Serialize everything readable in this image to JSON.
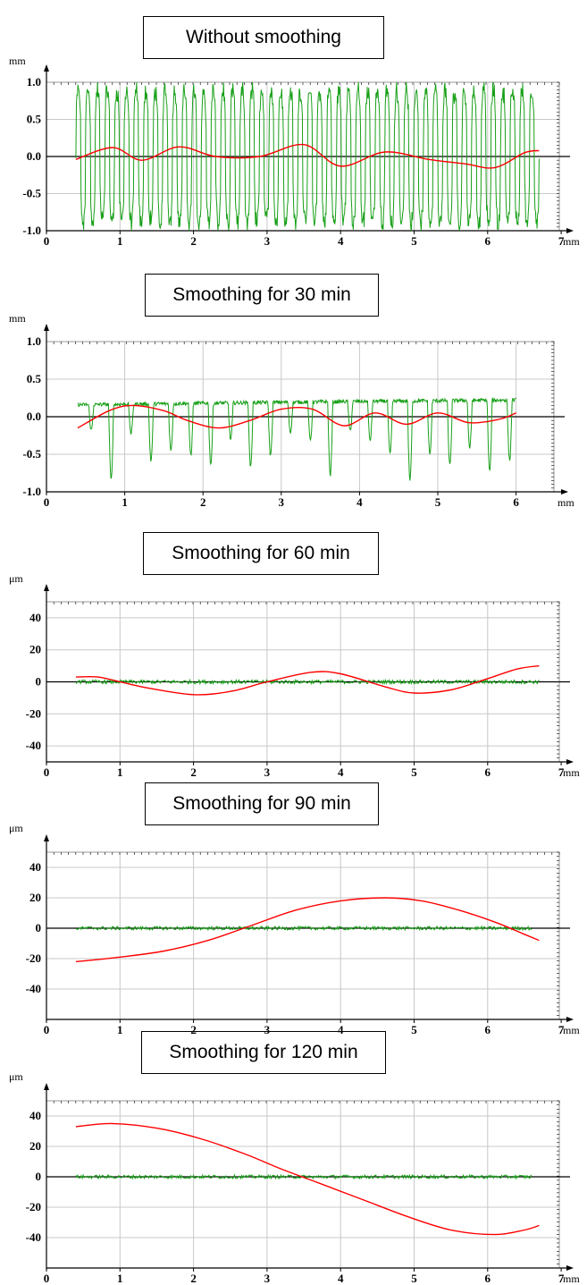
{
  "chart_data": [
    {
      "type": "line",
      "title": "Without smoothing",
      "ylabel": "mm",
      "xlabel": "mm",
      "xlim": [
        0,
        7
      ],
      "ylim": [
        -1.0,
        1.0
      ],
      "x_ticks": [
        "0",
        "1",
        "2",
        "3",
        "4",
        "5",
        "6",
        "7"
      ],
      "y_ticks": [
        "1.0",
        "0.5",
        "0.0",
        "-0.5",
        "-1.0"
      ],
      "grid": true,
      "series": [
        {
          "color": "#18a018",
          "style": "noise",
          "x": [
            0.4,
            6.7
          ],
          "amplitude": [
            -1.0,
            1.0
          ],
          "oscillations": 48
        },
        {
          "color": "#ff0000",
          "x": [
            0.4,
            0.9,
            1.3,
            1.8,
            2.3,
            2.9,
            3.5,
            4.0,
            4.6,
            5.2,
            5.7,
            6.1,
            6.5,
            6.7
          ],
          "y": [
            -0.04,
            0.12,
            -0.05,
            0.13,
            0.0,
            0.0,
            0.16,
            -0.13,
            0.06,
            -0.04,
            -0.1,
            -0.15,
            0.05,
            0.08
          ]
        }
      ]
    },
    {
      "type": "line",
      "title": "Smoothing for 30 min",
      "ylabel": "mm",
      "xlabel": "mm",
      "xlim": [
        0,
        6.2
      ],
      "ylim": [
        -1.0,
        1.0
      ],
      "x_ticks": [
        "0",
        "1",
        "2",
        "3",
        "4",
        "5",
        "6"
      ],
      "y_ticks": [
        "1.0",
        "0.5",
        "0.0",
        "-0.5",
        "-1.0"
      ],
      "grid": true,
      "series": [
        {
          "color": "#18a018",
          "style": "dips",
          "x": [
            0.4,
            6.0
          ],
          "baseline": 0.2,
          "dip_min": -0.9,
          "dips": 22
        },
        {
          "color": "#ff0000",
          "x": [
            0.4,
            0.8,
            1.1,
            1.5,
            1.8,
            2.2,
            2.6,
            3.0,
            3.4,
            3.8,
            4.2,
            4.6,
            5.0,
            5.4,
            5.8,
            6.0
          ],
          "y": [
            -0.15,
            0.08,
            0.15,
            0.08,
            -0.05,
            -0.15,
            -0.05,
            0.1,
            0.1,
            -0.12,
            0.05,
            -0.1,
            0.05,
            -0.08,
            -0.03,
            0.05
          ]
        }
      ]
    },
    {
      "type": "line",
      "title": "Smoothing for 60 min",
      "ylabel": "μm",
      "xlabel": "mm",
      "xlim": [
        0,
        7
      ],
      "ylim": [
        -50,
        50
      ],
      "x_ticks": [
        "0",
        "1",
        "2",
        "3",
        "4",
        "5",
        "6",
        "7"
      ],
      "y_ticks": [
        "40",
        "20",
        "0",
        "-20",
        "-40"
      ],
      "grid": true,
      "series": [
        {
          "color": "#18a018",
          "style": "flat",
          "x": [
            0.4,
            6.7
          ],
          "y": 0,
          "noise": 1.2
        },
        {
          "color": "#ff0000",
          "x": [
            0.4,
            0.7,
            1.0,
            1.4,
            2.0,
            2.5,
            3.0,
            3.6,
            4.0,
            4.6,
            5.0,
            5.5,
            6.0,
            6.4,
            6.7
          ],
          "y": [
            3,
            3,
            0,
            -4,
            -8,
            -6,
            0,
            6,
            5,
            -3,
            -7,
            -5,
            2,
            8,
            10
          ]
        }
      ]
    },
    {
      "type": "line",
      "title": "Smoothing for 90 min",
      "ylabel": "μm",
      "xlabel": "mm",
      "xlim": [
        0,
        7
      ],
      "ylim": [
        -60,
        50
      ],
      "x_ticks": [
        "0",
        "1",
        "2",
        "3",
        "4",
        "5",
        "6",
        "7"
      ],
      "y_ticks": [
        "40",
        "20",
        "0",
        "-20",
        "-40"
      ],
      "grid": true,
      "series": [
        {
          "color": "#18a018",
          "style": "flat",
          "x": [
            0.4,
            6.6
          ],
          "y": 0,
          "noise": 1.2
        },
        {
          "color": "#ff0000",
          "x": [
            0.4,
            1.0,
            1.6,
            2.2,
            2.8,
            3.4,
            4.0,
            4.6,
            5.1,
            5.6,
            6.1,
            6.5,
            6.7
          ],
          "y": [
            -22,
            -19,
            -15,
            -8,
            2,
            12,
            18,
            20,
            18,
            12,
            4,
            -4,
            -8
          ]
        }
      ]
    },
    {
      "type": "line",
      "title": "Smoothing for 120 min",
      "ylabel": "μm",
      "xlabel": "mm",
      "xlim": [
        0,
        7
      ],
      "ylim": [
        -60,
        50
      ],
      "x_ticks": [
        "0",
        "1",
        "2",
        "3",
        "4",
        "5",
        "6",
        "7"
      ],
      "y_ticks": [
        "40",
        "20",
        "0",
        "-20",
        "-40"
      ],
      "grid": true,
      "series": [
        {
          "color": "#18a018",
          "style": "flat",
          "x": [
            0.4,
            6.6
          ],
          "y": 0,
          "noise": 1.2
        },
        {
          "color": "#ff0000",
          "x": [
            0.4,
            0.9,
            1.5,
            2.1,
            2.7,
            3.2,
            3.7,
            4.3,
            4.9,
            5.5,
            6.1,
            6.5,
            6.7
          ],
          "y": [
            33,
            35,
            32,
            25,
            15,
            5,
            -4,
            -15,
            -26,
            -35,
            -38,
            -35,
            -32
          ]
        }
      ]
    }
  ]
}
